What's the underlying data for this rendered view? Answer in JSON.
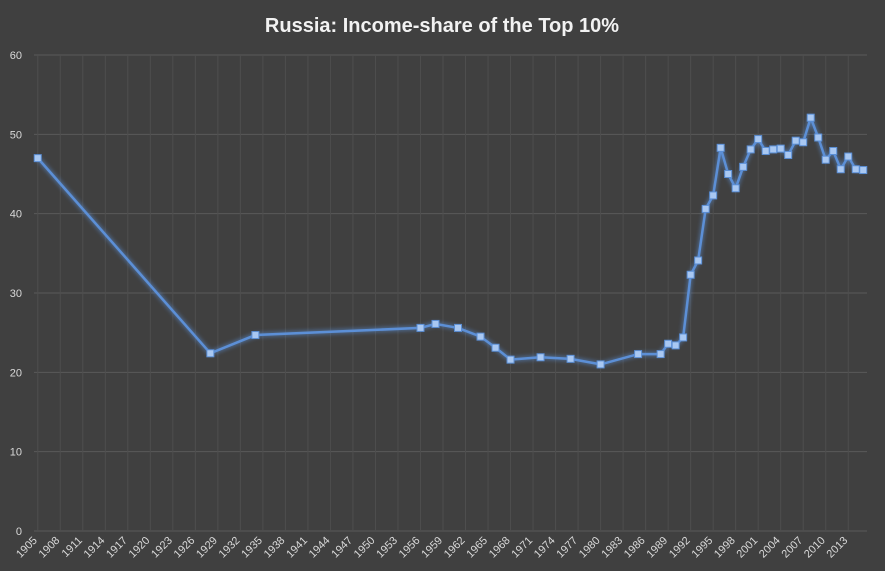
{
  "chart_data": {
    "type": "line",
    "title": "Russia: Income-share of the Top 10%",
    "x": [
      1905,
      1928,
      1934,
      1956,
      1958,
      1961,
      1964,
      1966,
      1968,
      1972,
      1976,
      1980,
      1985,
      1988,
      1989,
      1990,
      1991,
      1992,
      1993,
      1994,
      1995,
      1996,
      1997,
      1998,
      1999,
      2000,
      2001,
      2002,
      2003,
      2004,
      2005,
      2006,
      2007,
      2008,
      2009,
      2010,
      2011,
      2012,
      2013,
      2014,
      2015
    ],
    "series": [
      {
        "color": "#5b8fd6",
        "values": [
          47.0,
          22.4,
          24.7,
          25.6,
          26.1,
          25.6,
          24.5,
          23.1,
          21.6,
          21.9,
          21.7,
          21.0,
          22.3,
          22.3,
          23.6,
          23.4,
          24.4,
          32.3,
          34.1,
          40.6,
          42.3,
          48.3,
          45.0,
          43.2,
          45.9,
          48.1,
          49.4,
          47.9,
          48.1,
          48.2,
          47.4,
          49.2,
          49.0,
          52.1,
          49.6,
          46.8,
          47.9,
          45.6,
          47.2,
          45.6,
          45.5
        ]
      }
    ],
    "xlim": [
      1904.5,
      2015.5
    ],
    "xticks": [
      1905,
      1908,
      1911,
      1914,
      1917,
      1920,
      1923,
      1926,
      1929,
      1932,
      1935,
      1938,
      1941,
      1944,
      1947,
      1950,
      1953,
      1956,
      1959,
      1962,
      1965,
      1968,
      1971,
      1974,
      1977,
      1980,
      1983,
      1986,
      1989,
      1992,
      1995,
      1998,
      2001,
      2004,
      2007,
      2010,
      2013
    ],
    "ylim": [
      0,
      60
    ],
    "yticks": [
      0,
      10,
      20,
      30,
      40,
      50,
      60
    ],
    "grid": true
  }
}
